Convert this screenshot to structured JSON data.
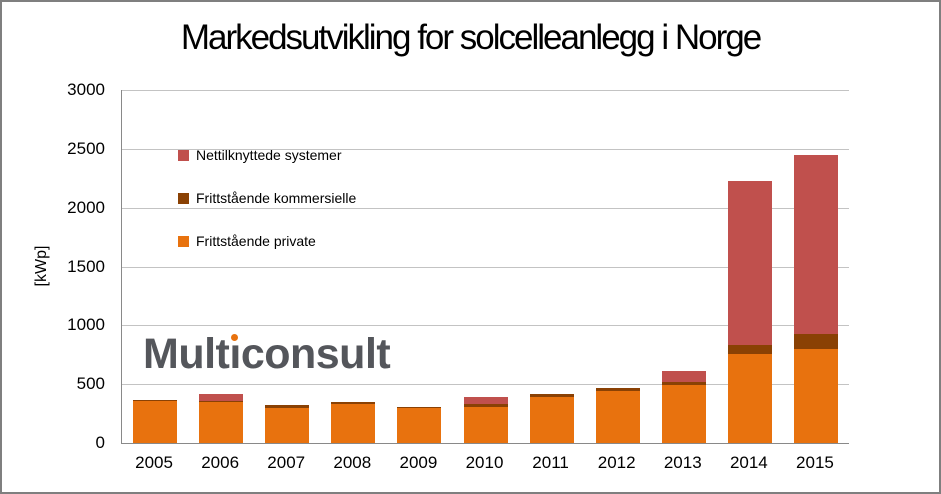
{
  "frame": {
    "border_color": "#7F7F7F",
    "background": "#FFFFFF"
  },
  "chart_data": {
    "type": "bar",
    "stacked": true,
    "title": "Markedsutvikling for solcelleanlegg i Norge",
    "ylabel": "[kWp]",
    "xlabel": "",
    "ylim": [
      0,
      3000
    ],
    "ytick_step": 500,
    "ytick_labels": [
      "0",
      "500",
      "1000",
      "1500",
      "2000",
      "2500",
      "3000"
    ],
    "grid": true,
    "legend_position": "upper-left-inside",
    "categories": [
      "2005",
      "2006",
      "2007",
      "2008",
      "2009",
      "2010",
      "2011",
      "2012",
      "2013",
      "2014",
      "2015"
    ],
    "series": [
      {
        "name": "Frittstående private",
        "color": "#E8720E",
        "values": [
          355,
          350,
          300,
          330,
          295,
          310,
          390,
          440,
          490,
          760,
          800
        ]
      },
      {
        "name": "Frittstående kommersielle",
        "color": "#8A4104",
        "values": [
          10,
          10,
          20,
          20,
          15,
          20,
          25,
          25,
          25,
          70,
          130
        ]
      },
      {
        "name": "Nettilknyttede systemer",
        "color": "#C0504D",
        "values": [
          0,
          55,
          0,
          0,
          0,
          60,
          0,
          0,
          100,
          1400,
          1515
        ]
      }
    ],
    "totals": [
      365,
      415,
      320,
      350,
      310,
      390,
      415,
      465,
      615,
      2230,
      2445
    ],
    "legend_order": [
      2,
      1,
      0
    ]
  },
  "watermark": {
    "text": "Multiconsult",
    "pre": "Mult",
    "dotless_i": "ı",
    "post": "consult",
    "color": "#54565B",
    "dot_color": "#E8720E"
  },
  "axis_style": {
    "gridline_color": "#C3C3C3",
    "axis_line_color": "#898989"
  }
}
